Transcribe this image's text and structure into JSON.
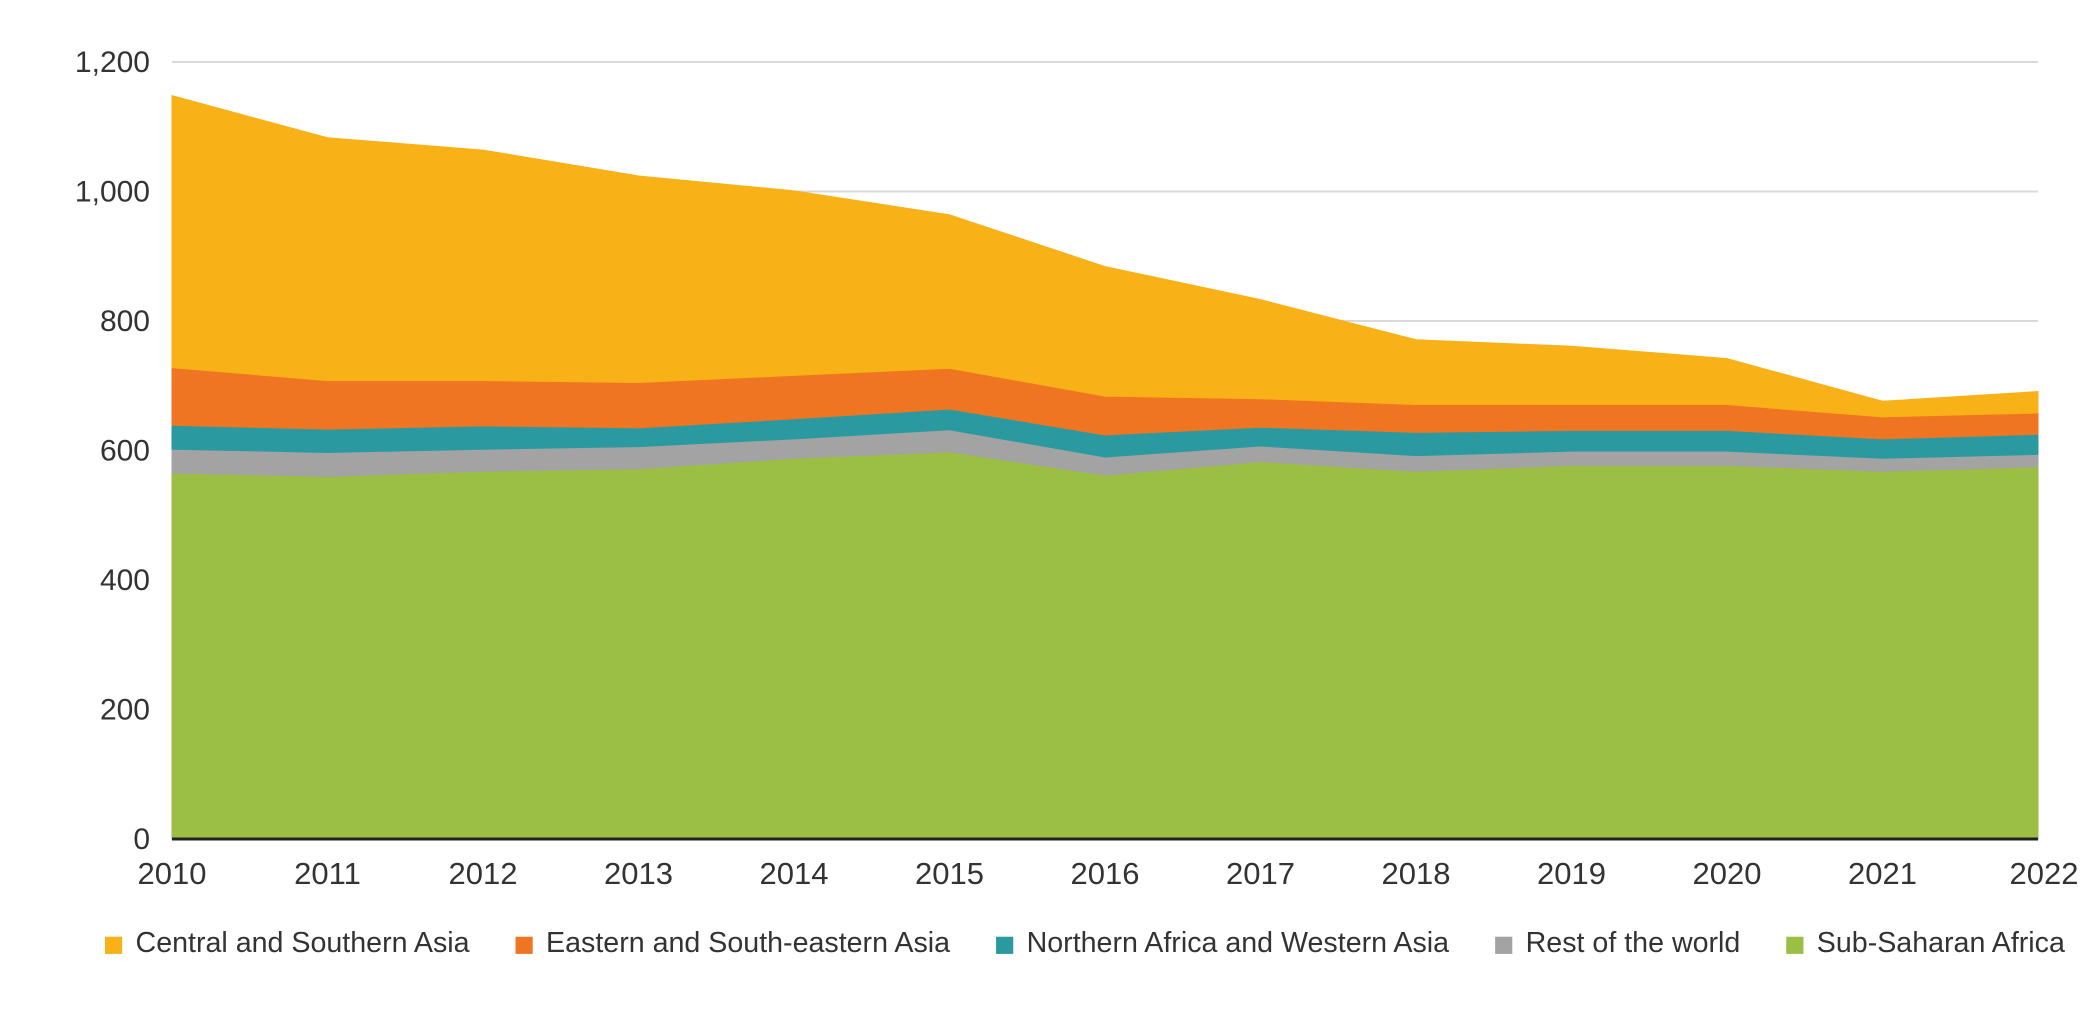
{
  "chart_data": {
    "type": "area",
    "stacked": true,
    "title": "",
    "xlabel": "",
    "ylabel": "",
    "x": [
      "2010",
      "2011",
      "2012",
      "2013",
      "2014",
      "2015",
      "2016",
      "2017",
      "2018",
      "2019",
      "2020",
      "2021",
      "2022"
    ],
    "ylim": [
      0,
      1200
    ],
    "yticks": [
      0,
      200,
      400,
      600,
      800,
      1000,
      1200
    ],
    "ytick_labels": [
      "0",
      "200",
      "400",
      "600",
      "800",
      "1,000",
      "1,200"
    ],
    "grid": true,
    "legend_position": "bottom",
    "series": [
      {
        "name": "Sub-Saharan Africa",
        "color": "#9bbe45",
        "values": [
          565,
          560,
          568,
          572,
          588,
          598,
          562,
          583,
          568,
          577,
          577,
          568,
          575
        ]
      },
      {
        "name": "Rest of the world",
        "color": "#a3a3a3",
        "values": [
          37,
          37,
          34,
          34,
          30,
          34,
          28,
          24,
          24,
          22,
          22,
          20,
          19
        ]
      },
      {
        "name": "Northern Africa and Western Asia",
        "color": "#2b9aa0",
        "values": [
          37,
          36,
          36,
          29,
          31,
          32,
          34,
          29,
          36,
          32,
          32,
          30,
          31
        ]
      },
      {
        "name": "Eastern and South-eastern Asia",
        "color": "#f07522",
        "values": [
          89,
          75,
          70,
          70,
          67,
          63,
          60,
          44,
          43,
          40,
          40,
          34,
          33
        ]
      },
      {
        "name": "Central and Southern Asia",
        "color": "#f8b116",
        "values": [
          420,
          375,
          356,
          319,
          285,
          237,
          200,
          153,
          100,
          90,
          71,
          24,
          33
        ]
      }
    ],
    "legend_order": [
      "Central and Southern Asia",
      "Eastern and South-eastern Asia",
      "Northern Africa and Western Asia",
      "Rest of the world",
      "Sub-Saharan Africa"
    ]
  }
}
